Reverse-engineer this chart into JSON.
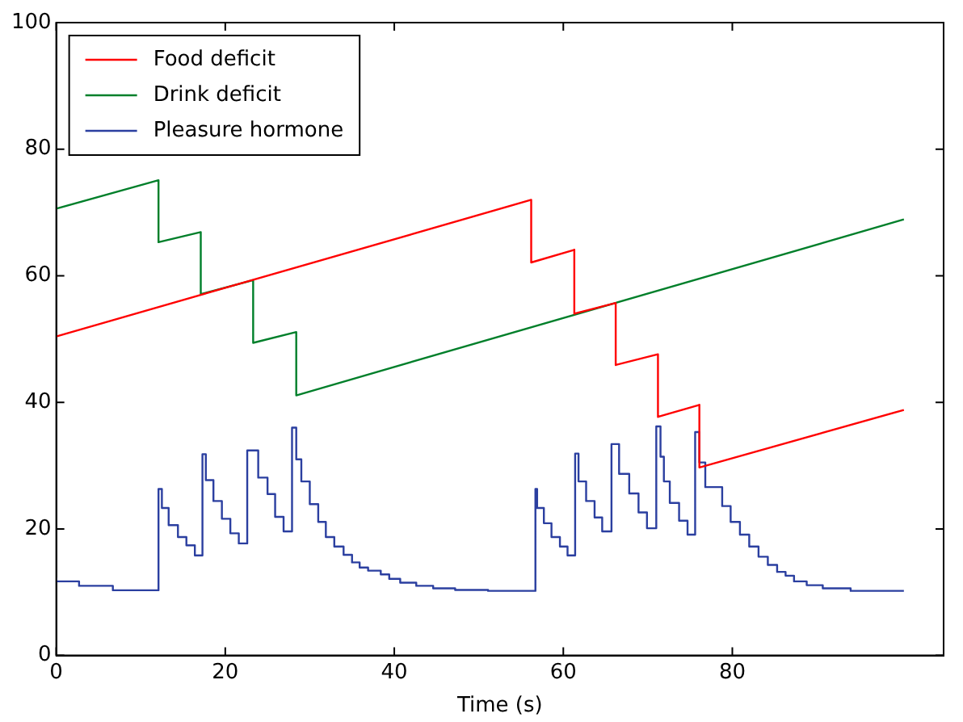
{
  "chart_data": {
    "type": "line",
    "xlabel": "Time (s)",
    "xlim": [
      0,
      105
    ],
    "xticks": [
      0,
      20,
      40,
      60,
      80
    ],
    "ylim": [
      0,
      100
    ],
    "yticks": [
      0,
      20,
      40,
      60,
      80,
      100
    ],
    "grid": false,
    "legend": "top left",
    "marker": "none",
    "line_style": "solid",
    "series": [
      {
        "name": "Food deficit",
        "color": "#ff0000",
        "x": [
          0,
          56.2,
          56.2,
          61.3,
          61.3,
          66.2,
          66.2,
          71.2,
          71.2,
          76.1,
          76.1,
          100.3
        ],
        "values": [
          50.4,
          72.0,
          62.1,
          64.1,
          54.0,
          55.7,
          45.9,
          47.6,
          37.7,
          39.6,
          29.7,
          38.8
        ]
      },
      {
        "name": "Drink deficit",
        "color": "#007f2a",
        "x": [
          0,
          12.1,
          12.1,
          17.1,
          17.1,
          23.3,
          23.3,
          28.4,
          28.4,
          100.3
        ],
        "values": [
          70.6,
          75.1,
          65.3,
          66.9,
          57.1,
          59.3,
          49.4,
          51.1,
          41.1,
          68.9
        ]
      },
      {
        "name": "Pleasure hormone",
        "color": "#2b3fa0",
        "type": "step",
        "x": [
          0,
          2.7,
          6.7,
          12.1,
          12.5,
          13.3,
          14.4,
          15.4,
          16.4,
          17.3,
          17.7,
          18.6,
          19.6,
          20.6,
          21.6,
          22.6,
          23.9,
          25.0,
          25.9,
          26.9,
          27.9,
          28.4,
          29.0,
          30.0,
          31.0,
          31.9,
          32.9,
          34.0,
          35.0,
          35.9,
          36.9,
          38.4,
          39.4,
          40.7,
          42.6,
          44.6,
          47.2,
          51.1,
          56.7,
          56.9,
          57.7,
          58.6,
          59.6,
          60.5,
          61.4,
          61.8,
          62.7,
          63.7,
          64.6,
          65.7,
          66.6,
          67.8,
          68.9,
          69.9,
          71.0,
          71.5,
          71.9,
          72.6,
          73.7,
          74.7,
          75.6,
          76.1,
          76.8,
          78.8,
          79.8,
          80.9,
          82.0,
          83.1,
          84.2,
          85.3,
          86.3,
          87.3,
          88.8,
          90.7,
          94.0,
          100.3
        ],
        "values": [
          12.3,
          11.7,
          11.0,
          10.3,
          26.3,
          23.3,
          20.6,
          18.7,
          17.4,
          15.8,
          31.8,
          27.7,
          24.4,
          21.6,
          19.3,
          17.7,
          32.4,
          28.1,
          25.5,
          21.9,
          19.6,
          36.0,
          31.0,
          27.5,
          23.9,
          21.1,
          18.7,
          17.2,
          15.9,
          14.7,
          13.9,
          13.4,
          12.8,
          12.1,
          11.5,
          11.0,
          10.6,
          10.35,
          10.2,
          26.3,
          23.3,
          20.9,
          18.7,
          17.2,
          15.8,
          31.9,
          27.5,
          24.4,
          21.8,
          19.6,
          33.4,
          28.7,
          25.6,
          22.6,
          20.1,
          36.2,
          31.4,
          27.5,
          24.1,
          21.3,
          19.1,
          35.3,
          30.5,
          26.6,
          23.6,
          21.1,
          19.1,
          17.2,
          15.6,
          14.3,
          13.2,
          12.6,
          11.7,
          11.1,
          10.6,
          10.2
        ]
      }
    ]
  }
}
